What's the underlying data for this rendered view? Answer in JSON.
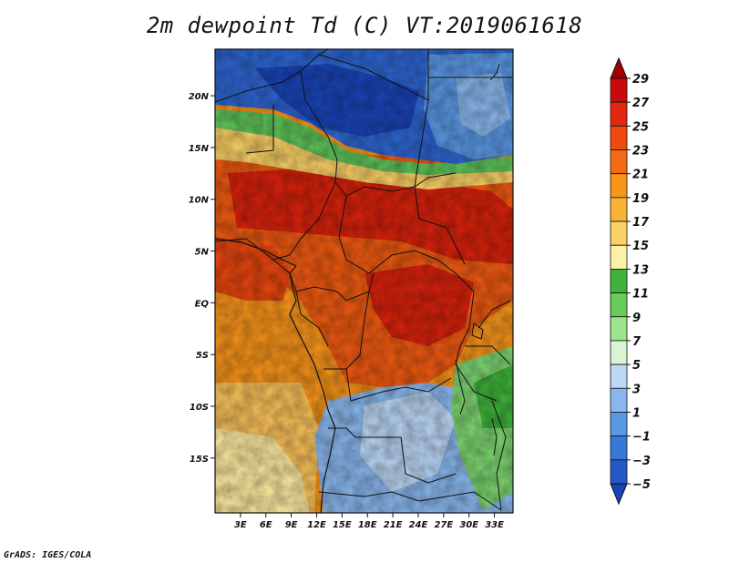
{
  "title": "2m dewpoint Td (C) VT:2019061618",
  "credit": "GrADS: IGES/COLA",
  "lat_labels": [
    "20N",
    "15N",
    "10N",
    "5N",
    "EQ",
    "5S",
    "10S",
    "15S"
  ],
  "lat_values": [
    20,
    15,
    10,
    5,
    0,
    -5,
    -10,
    -15
  ],
  "lon_labels": [
    "3E",
    "6E",
    "9E",
    "12E",
    "15E",
    "18E",
    "21E",
    "24E",
    "27E",
    "30E",
    "33E"
  ],
  "lon_values": [
    3,
    6,
    9,
    12,
    15,
    18,
    21,
    24,
    27,
    30,
    33
  ],
  "colorbar": {
    "labels": [
      "29",
      "27",
      "25",
      "23",
      "21",
      "19",
      "17",
      "15",
      "13",
      "11",
      "9",
      "7",
      "5",
      "3",
      "1",
      "−1",
      "−3",
      "−5"
    ],
    "colors": [
      "#a50000",
      "#c80a0a",
      "#e1280e",
      "#f04a10",
      "#f36c14",
      "#f7941a",
      "#f9b234",
      "#fbd166",
      "#fdf0a8",
      "#3fb43a",
      "#69cc5a",
      "#9ee48c",
      "#d8f4d2",
      "#bcd8f6",
      "#8ab8ee",
      "#5a98e4",
      "#3a78d8",
      "#2458c8",
      "#1a44b8"
    ]
  },
  "field_legend": {
    "sahara": "#2e66d2",
    "sahel_green": "#5fc45a",
    "hot_core": "#d8220c",
    "warm": "#ef5a12",
    "orange": "#f7941a",
    "light_orange": "#fbc25a",
    "pale": "#fde9a0",
    "south_blue": "#8ab8ee",
    "east_green": "#7ed672"
  }
}
